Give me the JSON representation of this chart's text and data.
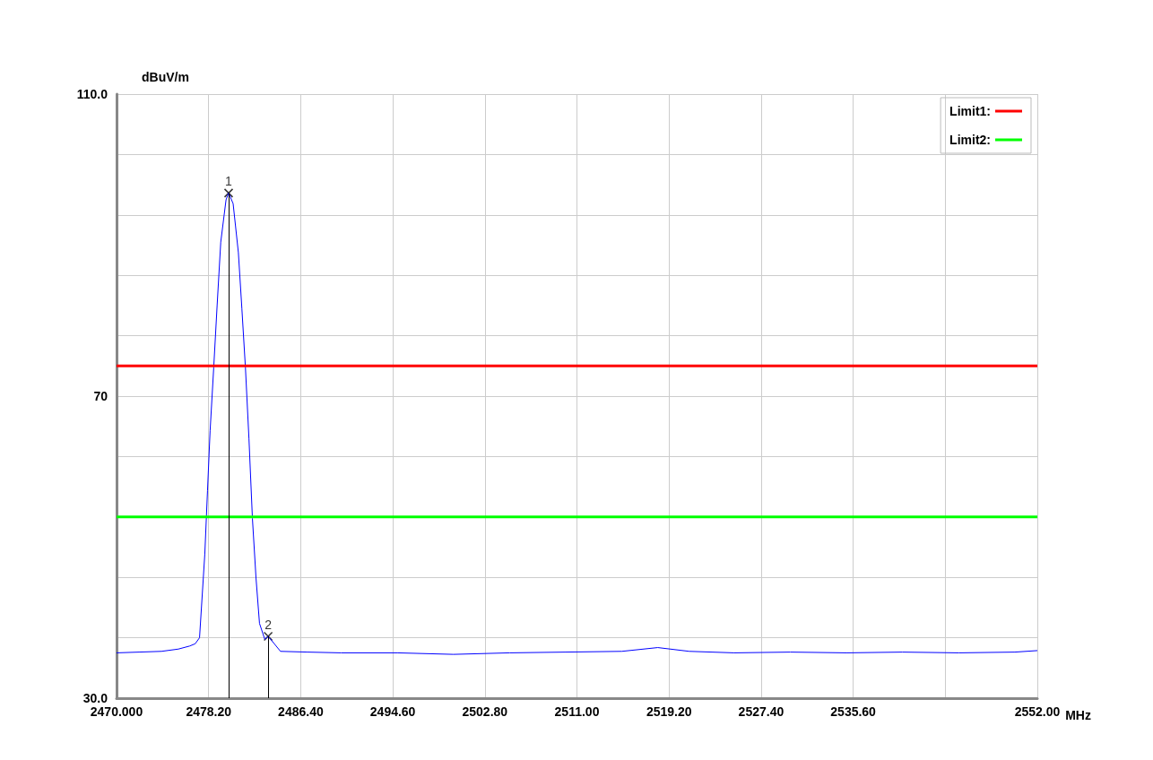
{
  "chart_data": {
    "type": "line",
    "xlabel": "MHz",
    "ylabel": "dBuV/m",
    "xlim": [
      2470,
      2552
    ],
    "ylim": [
      30,
      110
    ],
    "xticks": [
      {
        "value": 2470,
        "label": "2470.000"
      },
      {
        "value": 2478.2,
        "label": "2478.20"
      },
      {
        "value": 2486.4,
        "label": "2486.40"
      },
      {
        "value": 2494.6,
        "label": "2494.60"
      },
      {
        "value": 2502.8,
        "label": "2502.80"
      },
      {
        "value": 2511,
        "label": "2511.00"
      },
      {
        "value": 2519.2,
        "label": "2519.20"
      },
      {
        "value": 2527.4,
        "label": "2527.40"
      },
      {
        "value": 2535.6,
        "label": "2535.60"
      },
      {
        "value": 2543.8,
        "label": null
      },
      {
        "value": 2552,
        "label": "2552.00"
      }
    ],
    "yticks": [
      {
        "value": 30,
        "label": "30.0"
      },
      {
        "value": 38,
        "label": null
      },
      {
        "value": 46,
        "label": null
      },
      {
        "value": 54,
        "label": null
      },
      {
        "value": 62,
        "label": null
      },
      {
        "value": 70,
        "label": "70"
      },
      {
        "value": 78,
        "label": null
      },
      {
        "value": 86,
        "label": null
      },
      {
        "value": 94,
        "label": null
      },
      {
        "value": 102,
        "label": null
      },
      {
        "value": 110,
        "label": "110.0"
      }
    ],
    "grid": true,
    "legend": "top right",
    "marker": "none",
    "line_style": "solid",
    "series": [
      {
        "color": "#0000ff",
        "x": [
          2470,
          2472,
          2474,
          2475.5,
          2476.5,
          2477,
          2477.39,
          2477.86,
          2478.1,
          2478.33,
          2478.65,
          2478.96,
          2479.28,
          2479.75,
          2479.98,
          2480.38,
          2480.85,
          2481.16,
          2481.48,
          2481.79,
          2482.1,
          2482.42,
          2482.73,
          2483.2,
          2483.5,
          2484.6,
          2487,
          2490,
          2495,
          2500,
          2505,
          2510,
          2515,
          2518.2,
          2521,
          2525,
          2530,
          2535,
          2540,
          2545,
          2550,
          2552
        ],
        "values": [
          36.0,
          36.1,
          36.2,
          36.5,
          36.9,
          37.2,
          38.0,
          49.1,
          57.5,
          65.4,
          73.7,
          82.1,
          90.4,
          96.0,
          96.9,
          95.5,
          89.0,
          81.6,
          73.7,
          64.4,
          53.8,
          45.9,
          39.9,
          37.8,
          38.2,
          36.2,
          36.1,
          36.0,
          36.0,
          35.8,
          36.0,
          36.1,
          36.2,
          36.7,
          36.2,
          36.0,
          36.1,
          36.0,
          36.1,
          36.0,
          36.1,
          36.3
        ]
      },
      {
        "name": "Limit1:",
        "color": "#ff0000",
        "x": [
          2470,
          2552
        ],
        "values": [
          74,
          74
        ]
      },
      {
        "name": "Limit2:",
        "color": "#00ff00",
        "x": [
          2470,
          2552
        ],
        "values": [
          54,
          54
        ]
      },
      {
        "type": "lollipop",
        "color": "#000000",
        "marker": "cross",
        "x": [
          2479.98,
          2483.5
        ],
        "values": [
          96.9,
          38.2
        ]
      }
    ],
    "annotations": [
      {
        "text": "1",
        "x": 2479.98,
        "y": 96.9
      },
      {
        "text": "2",
        "x": 2483.5,
        "y": 38.2
      }
    ]
  }
}
